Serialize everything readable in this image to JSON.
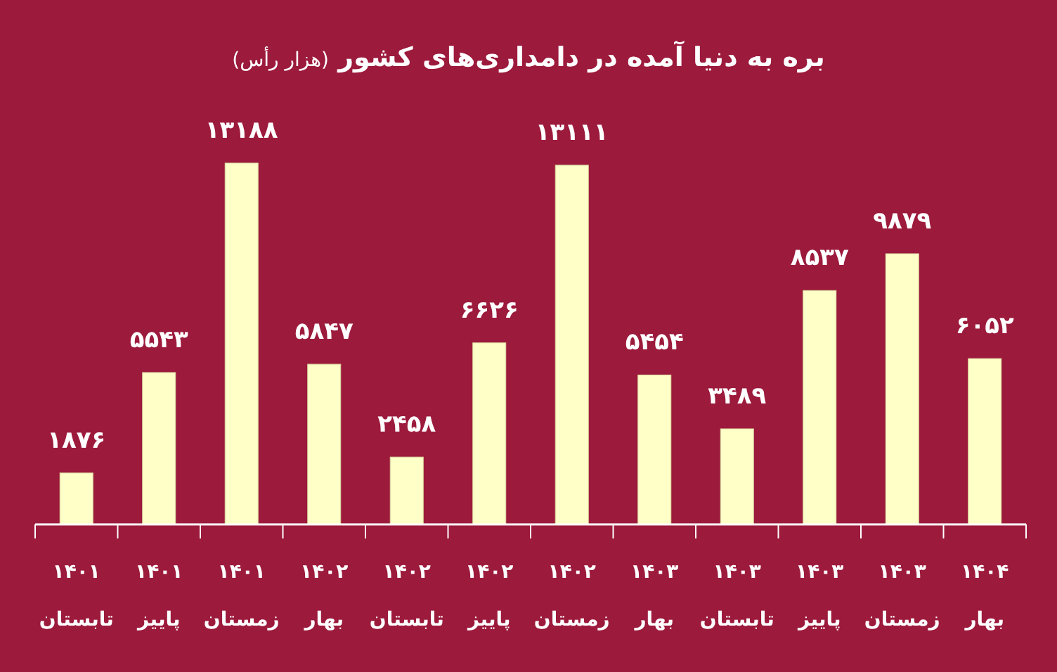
{
  "chart_data": {
    "type": "bar",
    "title": "بره به دنیا آمده در دامداری‌های کشور",
    "subtitle": "(هزار رأس)",
    "categories": [
      "۱۴۰۱ تابستان",
      "۱۴۰۱ پاییز",
      "۱۴۰۱ زمستان",
      "۱۴۰۲ بهار",
      "۱۴۰۲ تابستان",
      "۱۴۰۲ پاییز",
      "۱۴۰۲ زمستان",
      "۱۴۰۳ بهار",
      "۱۴۰۳ تابستان",
      "۱۴۰۳ پاییز",
      "۱۴۰۳ زمستان",
      "۱۴۰۴ بهار"
    ],
    "values": [
      1876,
      5543,
      13188,
      5847,
      2458,
      6626,
      13111,
      5454,
      3489,
      8537,
      9879,
      6052
    ],
    "value_labels": [
      "۱۸۷۶",
      "۵۵۴۳",
      "۱۳۱۸۸",
      "۵۸۴۷",
      "۲۴۵۸",
      "۶۶۲۶",
      "۱۳۱۱۱",
      "۵۴۵۴",
      "۳۴۸۹",
      "۸۵۳۷",
      "۹۸۷۹",
      "۶۰۵۲"
    ],
    "color": "#ffffc8"
  }
}
